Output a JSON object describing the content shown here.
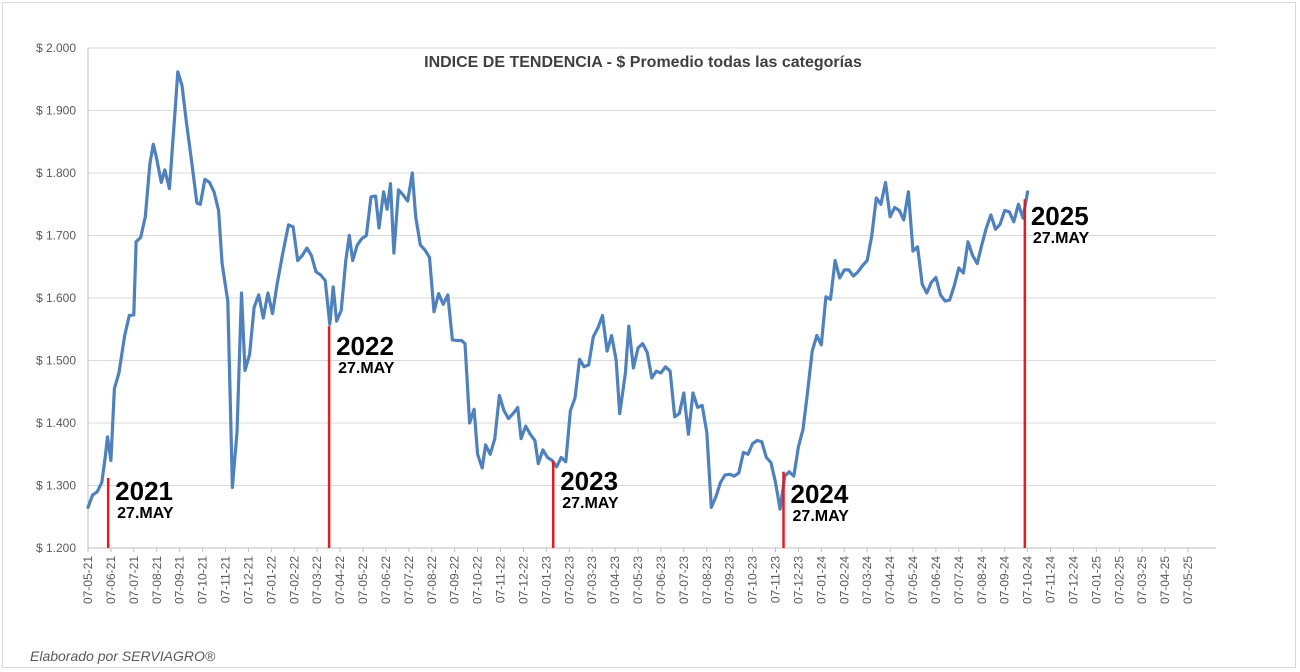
{
  "chart_data": {
    "type": "line",
    "title": "INDICE DE TENDENCIA - $ Promedio todas las categorías",
    "ylim": [
      1200,
      2000
    ],
    "y_ticks": [
      "$ 1.200",
      "$ 1.300",
      "$ 1.400",
      "$ 1.500",
      "$ 1.600",
      "$ 1.700",
      "$ 1.800",
      "$ 1.900",
      "$ 2.000"
    ],
    "x_ticks": [
      "07-05-21",
      "07-06-21",
      "07-07-21",
      "07-08-21",
      "07-09-21",
      "07-10-21",
      "07-11-21",
      "07-12-21",
      "07-01-22",
      "07-02-22",
      "07-03-22",
      "07-04-22",
      "07-05-22",
      "07-06-22",
      "07-07-22",
      "07-08-22",
      "07-09-22",
      "07-10-22",
      "07-11-22",
      "07-12-22",
      "07-01-23",
      "07-02-23",
      "07-03-23",
      "07-04-23",
      "07-05-23",
      "07-06-23",
      "07-07-23",
      "07-08-23",
      "07-09-23",
      "07-10-23",
      "07-11-23",
      "07-12-23",
      "07-01-24",
      "07-02-24",
      "07-03-24",
      "07-04-24",
      "07-05-24",
      "07-06-24",
      "07-07-24",
      "07-08-24",
      "07-09-24",
      "07-10-24",
      "07-11-24",
      "07-12-24",
      "07-01-25",
      "07-02-25",
      "07-03-25",
      "07-04-25",
      "07-05-25"
    ],
    "grid": "horizontal",
    "line_color": "#4F81BD",
    "marker_color": "#E31B23",
    "series": [
      {
        "points": [
          [
            0,
            1265
          ],
          [
            0.2,
            1285
          ],
          [
            0.4,
            1290
          ],
          [
            0.6,
            1305
          ],
          [
            0.75,
            1345
          ],
          [
            0.85,
            1378
          ],
          [
            1.0,
            1340
          ],
          [
            1.15,
            1455
          ],
          [
            1.35,
            1480
          ],
          [
            1.6,
            1540
          ],
          [
            1.8,
            1572
          ],
          [
            2.0,
            1573
          ],
          [
            2.1,
            1690
          ],
          [
            2.3,
            1697
          ],
          [
            2.5,
            1730
          ],
          [
            2.7,
            1815
          ],
          [
            2.85,
            1846
          ],
          [
            3.0,
            1822
          ],
          [
            3.2,
            1785
          ],
          [
            3.35,
            1805
          ],
          [
            3.55,
            1775
          ],
          [
            3.8,
            1900
          ],
          [
            3.92,
            1962
          ],
          [
            4.1,
            1940
          ],
          [
            4.3,
            1880
          ],
          [
            4.5,
            1825
          ],
          [
            4.75,
            1752
          ],
          [
            4.9,
            1750
          ],
          [
            5.1,
            1790
          ],
          [
            5.3,
            1785
          ],
          [
            5.5,
            1770
          ],
          [
            5.7,
            1740
          ],
          [
            5.85,
            1655
          ],
          [
            6.1,
            1595
          ],
          [
            6.3,
            1297
          ],
          [
            6.5,
            1385
          ],
          [
            6.7,
            1608
          ],
          [
            6.85,
            1484
          ],
          [
            7.05,
            1510
          ],
          [
            7.25,
            1585
          ],
          [
            7.45,
            1605
          ],
          [
            7.65,
            1568
          ],
          [
            7.85,
            1608
          ],
          [
            8.05,
            1575
          ],
          [
            8.25,
            1622
          ],
          [
            8.5,
            1672
          ],
          [
            8.75,
            1717
          ],
          [
            8.95,
            1714
          ],
          [
            9.15,
            1660
          ],
          [
            9.35,
            1668
          ],
          [
            9.55,
            1680
          ],
          [
            9.75,
            1668
          ],
          [
            9.95,
            1642
          ],
          [
            10.15,
            1637
          ],
          [
            10.35,
            1628
          ],
          [
            10.55,
            1558
          ],
          [
            10.7,
            1618
          ],
          [
            10.85,
            1563
          ],
          [
            11.05,
            1580
          ],
          [
            11.25,
            1660
          ],
          [
            11.4,
            1700
          ],
          [
            11.55,
            1660
          ],
          [
            11.75,
            1685
          ],
          [
            11.95,
            1695
          ],
          [
            12.15,
            1700
          ],
          [
            12.35,
            1762
          ],
          [
            12.55,
            1763
          ],
          [
            12.7,
            1712
          ],
          [
            12.9,
            1770
          ],
          [
            13.05,
            1742
          ],
          [
            13.2,
            1783
          ],
          [
            13.35,
            1672
          ],
          [
            13.55,
            1773
          ],
          [
            13.75,
            1765
          ],
          [
            13.95,
            1755
          ],
          [
            14.15,
            1800
          ],
          [
            14.3,
            1730
          ],
          [
            14.5,
            1685
          ],
          [
            14.7,
            1677
          ],
          [
            14.9,
            1665
          ],
          [
            15.1,
            1578
          ],
          [
            15.3,
            1607
          ],
          [
            15.5,
            1590
          ],
          [
            15.7,
            1605
          ],
          [
            15.9,
            1533
          ],
          [
            16.1,
            1532
          ],
          [
            16.3,
            1532
          ],
          [
            16.45,
            1527
          ],
          [
            16.65,
            1400
          ],
          [
            16.85,
            1422
          ],
          [
            17.0,
            1350
          ],
          [
            17.2,
            1328
          ],
          [
            17.35,
            1365
          ],
          [
            17.55,
            1350
          ],
          [
            17.75,
            1375
          ],
          [
            17.95,
            1444
          ],
          [
            18.15,
            1420
          ],
          [
            18.35,
            1407
          ],
          [
            18.55,
            1415
          ],
          [
            18.75,
            1425
          ],
          [
            18.9,
            1375
          ],
          [
            19.1,
            1395
          ],
          [
            19.3,
            1382
          ],
          [
            19.5,
            1372
          ],
          [
            19.65,
            1335
          ],
          [
            19.85,
            1357
          ],
          [
            20.05,
            1345
          ],
          [
            20.25,
            1340
          ],
          [
            20.45,
            1330
          ],
          [
            20.65,
            1345
          ],
          [
            20.85,
            1338
          ],
          [
            21.05,
            1420
          ],
          [
            21.25,
            1440
          ],
          [
            21.45,
            1502
          ],
          [
            21.65,
            1490
          ],
          [
            21.85,
            1493
          ],
          [
            22.05,
            1538
          ],
          [
            22.25,
            1552
          ],
          [
            22.45,
            1572
          ],
          [
            22.65,
            1515
          ],
          [
            22.85,
            1540
          ],
          [
            23.05,
            1500
          ],
          [
            23.2,
            1415
          ],
          [
            23.45,
            1480
          ],
          [
            23.6,
            1555
          ],
          [
            23.8,
            1488
          ],
          [
            24.0,
            1520
          ],
          [
            24.2,
            1527
          ],
          [
            24.4,
            1513
          ],
          [
            24.6,
            1472
          ],
          [
            24.8,
            1483
          ],
          [
            25.0,
            1480
          ],
          [
            25.2,
            1490
          ],
          [
            25.4,
            1483
          ],
          [
            25.6,
            1410
          ],
          [
            25.8,
            1415
          ],
          [
            26.0,
            1448
          ],
          [
            26.2,
            1382
          ],
          [
            26.4,
            1448
          ],
          [
            26.6,
            1425
          ],
          [
            26.8,
            1428
          ],
          [
            27.0,
            1385
          ],
          [
            27.2,
            1265
          ],
          [
            27.4,
            1282
          ],
          [
            27.6,
            1305
          ],
          [
            27.8,
            1317
          ],
          [
            28.0,
            1318
          ],
          [
            28.2,
            1315
          ],
          [
            28.4,
            1320
          ],
          [
            28.6,
            1353
          ],
          [
            28.8,
            1350
          ],
          [
            29.0,
            1367
          ],
          [
            29.2,
            1372
          ],
          [
            29.4,
            1370
          ],
          [
            29.6,
            1345
          ],
          [
            29.8,
            1337
          ],
          [
            30.0,
            1305
          ],
          [
            30.2,
            1262
          ],
          [
            30.4,
            1315
          ],
          [
            30.6,
            1322
          ],
          [
            30.8,
            1315
          ],
          [
            31.0,
            1362
          ],
          [
            31.2,
            1390
          ],
          [
            31.4,
            1450
          ],
          [
            31.6,
            1515
          ],
          [
            31.8,
            1540
          ],
          [
            32.0,
            1525
          ],
          [
            32.2,
            1602
          ],
          [
            32.4,
            1598
          ],
          [
            32.6,
            1660
          ],
          [
            32.8,
            1632
          ],
          [
            33.0,
            1645
          ],
          [
            33.2,
            1645
          ],
          [
            33.4,
            1635
          ],
          [
            33.6,
            1642
          ],
          [
            33.8,
            1652
          ],
          [
            34.0,
            1660
          ],
          [
            34.2,
            1700
          ],
          [
            34.4,
            1760
          ],
          [
            34.6,
            1750
          ],
          [
            34.8,
            1785
          ],
          [
            35.0,
            1730
          ],
          [
            35.2,
            1745
          ],
          [
            35.4,
            1740
          ],
          [
            35.6,
            1725
          ],
          [
            35.8,
            1770
          ],
          [
            36.0,
            1675
          ],
          [
            36.2,
            1682
          ],
          [
            36.4,
            1622
          ],
          [
            36.6,
            1608
          ],
          [
            36.8,
            1625
          ],
          [
            37.0,
            1633
          ],
          [
            37.2,
            1605
          ],
          [
            37.4,
            1595
          ],
          [
            37.6,
            1597
          ],
          [
            37.8,
            1620
          ],
          [
            38.0,
            1648
          ],
          [
            38.2,
            1640
          ],
          [
            38.4,
            1690
          ],
          [
            38.6,
            1668
          ],
          [
            38.8,
            1655
          ],
          [
            39.0,
            1685
          ],
          [
            39.2,
            1712
          ],
          [
            39.4,
            1733
          ],
          [
            39.6,
            1710
          ],
          [
            39.8,
            1718
          ],
          [
            40.0,
            1740
          ],
          [
            40.2,
            1738
          ],
          [
            40.4,
            1722
          ],
          [
            40.6,
            1750
          ],
          [
            40.8,
            1728
          ],
          [
            41.0,
            1770
          ]
        ]
      }
    ],
    "markers": [
      {
        "year": "2021",
        "date": "27.MAY",
        "x": 0.88,
        "y": 1312
      },
      {
        "year": "2022",
        "date": "27.MAY",
        "x": 10.52,
        "y": 1555
      },
      {
        "year": "2023",
        "date": "27.MAY",
        "x": 20.3,
        "y": 1340
      },
      {
        "year": "2024",
        "date": "27.MAY",
        "x": 30.35,
        "y": 1322
      },
      {
        "year": "2025",
        "date": "27.MAY",
        "x": 40.88,
        "y": 1758
      }
    ]
  },
  "footer": {
    "credit": "Elaborado por SERVIAGRO®"
  }
}
